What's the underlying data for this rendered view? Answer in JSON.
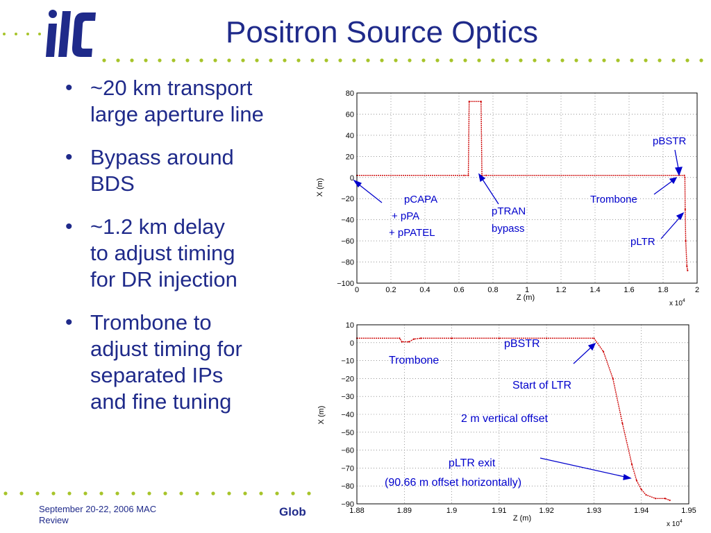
{
  "title": "Positron Source Optics",
  "logo": {
    "text": "ilc",
    "icon": "ilc-logo"
  },
  "bullets": [
    "~20 km transport\nlarge aperture line",
    "Bypass around\nBDS",
    "~1.2 km delay\nto adjust timing\nfor DR injection",
    "Trombone to\nadjust timing for\nseparated IPs\nand fine tuning"
  ],
  "footer": {
    "date": "September 20-22, 2006     MAC\nReview",
    "center": "Glob"
  },
  "colors": {
    "title": "#1f2a8a",
    "dots": "#a7c42a",
    "trace": "#cc0000",
    "annotation": "#0000cc"
  },
  "chart_data": [
    {
      "type": "line",
      "xlabel": "Z (m)",
      "ylabel": "X (m)",
      "xlim": [
        0,
        20000
      ],
      "ylim": [
        -100,
        80
      ],
      "x_ticks": [
        0,
        2000,
        4000,
        6000,
        8000,
        10000,
        12000,
        14000,
        16000,
        18000,
        20000
      ],
      "x_tick_labels": [
        "0",
        "0.2",
        "0.4",
        "0.6",
        "0.8",
        "1",
        "1.2",
        "1.4",
        "1.6",
        "1.8",
        "2"
      ],
      "x_exponent": "x 10",
      "x_exponent_power": "4",
      "y_ticks": [
        80,
        60,
        40,
        20,
        0,
        -20,
        -40,
        -60,
        -80,
        -100
      ],
      "y_tick_labels": [
        "80",
        "60",
        "40",
        "20",
        "0",
        "−20",
        "−40",
        "−60",
        "−80",
        "−100"
      ],
      "grid": true,
      "series": [
        {
          "x": [
            0,
            6300,
            6550,
            6600,
            7300,
            7350,
            7600,
            19250,
            19280,
            19300,
            19330,
            19400,
            19440
          ],
          "y": [
            2,
            2,
            2,
            72,
            72,
            2,
            2,
            2,
            0,
            -30,
            -60,
            -84,
            -88
          ]
        }
      ],
      "annotations": [
        {
          "id": "pbstr",
          "label": "pBSTR"
        },
        {
          "id": "trombone",
          "label": "Trombone"
        },
        {
          "id": "pcapa",
          "label": "pCAPA"
        },
        {
          "id": "ppa",
          "label": "+ pPA"
        },
        {
          "id": "ppatel",
          "label": "+ pPATEL"
        },
        {
          "id": "ptran",
          "label": "pTRAN"
        },
        {
          "id": "bypass",
          "label": "bypass"
        },
        {
          "id": "pltr",
          "label": "pLTR"
        }
      ]
    },
    {
      "type": "line",
      "xlabel": "Z (m)",
      "ylabel": "X (m)",
      "xlim": [
        18800,
        19500
      ],
      "ylim": [
        -90,
        10
      ],
      "x_ticks": [
        18800,
        18900,
        19000,
        19100,
        19200,
        19300,
        19400,
        19500
      ],
      "x_tick_labels": [
        "1.88",
        "1.89",
        "1.9",
        "1.91",
        "1.92",
        "1.93",
        "1.94",
        "1.95"
      ],
      "x_exponent": "x 10",
      "x_exponent_power": "4",
      "y_ticks": [
        10,
        0,
        -10,
        -20,
        -30,
        -40,
        -50,
        -60,
        -70,
        -80,
        -90
      ],
      "y_tick_labels": [
        "10",
        "0",
        "−10",
        "−20",
        "−30",
        "−40",
        "−50",
        "−60",
        "−70",
        "−80",
        "−90"
      ],
      "grid": true,
      "series": [
        {
          "x": [
            18800,
            18890,
            18895,
            18910,
            18920,
            18935,
            19000,
            19100,
            19200,
            19300,
            19320,
            19340,
            19360,
            19380,
            19390,
            19400,
            19410,
            19430,
            19450,
            19460
          ],
          "y": [
            2.5,
            2.5,
            0.5,
            0.5,
            2,
            2.5,
            2.5,
            2.5,
            2.5,
            2.5,
            -5,
            -20,
            -45,
            -68,
            -77,
            -82,
            -85,
            -87,
            -87,
            -88
          ]
        }
      ],
      "annotations": [
        {
          "id": "pbstr",
          "label": "pBSTR"
        },
        {
          "id": "trombone",
          "label": "Trombone"
        },
        {
          "id": "start-ltr",
          "label": "Start of LTR"
        },
        {
          "id": "vertical-offset",
          "label": "2 m vertical offset"
        },
        {
          "id": "pltr-exit",
          "label": "pLTR exit"
        },
        {
          "id": "horizontal-offset",
          "label": "(90.66 m offset horizontally)"
        }
      ]
    }
  ]
}
